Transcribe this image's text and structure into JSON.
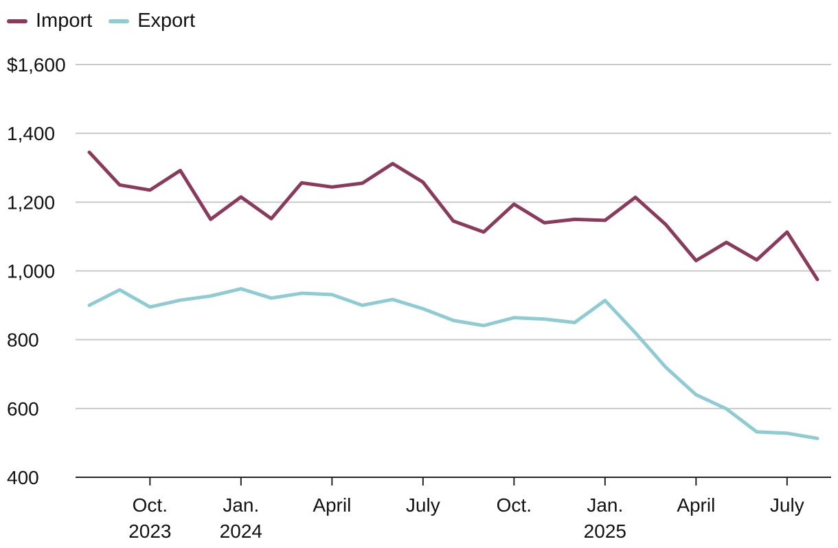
{
  "chart_data": {
    "type": "line",
    "title": "",
    "xlabel": "",
    "ylabel": "",
    "ylim": [
      400,
      1600
    ],
    "y_ticks": [
      400,
      600,
      800,
      1000,
      1200,
      1400,
      1600
    ],
    "y_tick_labels": [
      "400",
      "600",
      "800",
      "1,000",
      "1,200",
      "1,400",
      "$1,600"
    ],
    "x": [
      "2023-08",
      "2023-09",
      "2023-10",
      "2023-11",
      "2023-12",
      "2024-01",
      "2024-02",
      "2024-03",
      "2024-04",
      "2024-05",
      "2024-06",
      "2024-07",
      "2024-08",
      "2024-09",
      "2024-10",
      "2024-11",
      "2024-12",
      "2025-01",
      "2025-02",
      "2025-03",
      "2025-04",
      "2025-05",
      "2025-06",
      "2025-07",
      "2025-08"
    ],
    "x_ticks": [
      {
        "label_line1": "Oct.",
        "label_line2": "2023",
        "index": 2
      },
      {
        "label_line1": "Jan.",
        "label_line2": "2024",
        "index": 5
      },
      {
        "label_line1": "April",
        "label_line2": "",
        "index": 8
      },
      {
        "label_line1": "July",
        "label_line2": "",
        "index": 11
      },
      {
        "label_line1": "Oct.",
        "label_line2": "",
        "index": 14
      },
      {
        "label_line1": "Jan.",
        "label_line2": "2025",
        "index": 17
      },
      {
        "label_line1": "April",
        "label_line2": "",
        "index": 20
      },
      {
        "label_line1": "July",
        "label_line2": "",
        "index": 23
      }
    ],
    "series": [
      {
        "name": "Import",
        "color": "#8a3b5c",
        "values": [
          1345,
          1250,
          1235,
          1292,
          1150,
          1215,
          1152,
          1256,
          1244,
          1255,
          1312,
          1258,
          1145,
          1113,
          1194,
          1140,
          1150,
          1147,
          1214,
          1135,
          1030,
          1083,
          1032,
          1113,
          975
        ]
      },
      {
        "name": "Export",
        "color": "#8fcbd3",
        "values": [
          900,
          945,
          895,
          915,
          927,
          948,
          921,
          935,
          931,
          900,
          917,
          890,
          856,
          841,
          864,
          860,
          850,
          914,
          820,
          720,
          640,
          599,
          532,
          528,
          513
        ]
      }
    ]
  }
}
